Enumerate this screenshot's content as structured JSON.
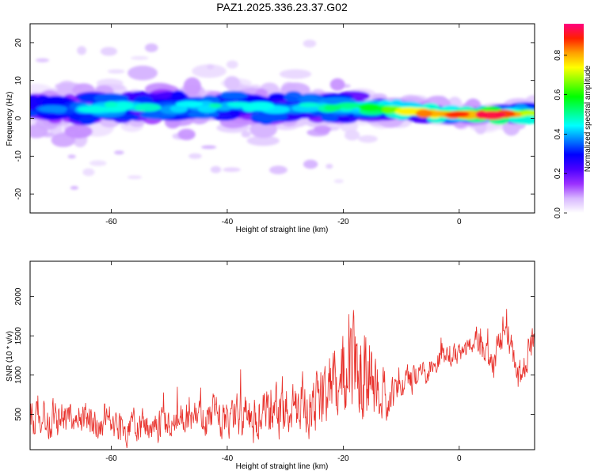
{
  "title": "PAZ1.2025.336.23.37.G02",
  "chart_data": [
    {
      "type": "heatmap",
      "title": "PAZ1.2025.336.23.37.G02",
      "xlabel": "Height of straight line (km)",
      "ylabel": "Frequency (Hz)",
      "xlim": [
        -74,
        13
      ],
      "ylim": [
        -25,
        25
      ],
      "xticks": [
        -60,
        -40,
        -20,
        0
      ],
      "yticks": [
        -20,
        -10,
        0,
        10,
        20
      ],
      "colorbar": {
        "label": "Normalized spectral amplitude",
        "range": [
          0,
          0.96
        ],
        "ticks": [
          0.0,
          0.2,
          0.4,
          0.6,
          0.8
        ],
        "colormap": [
          "#ffffff",
          "#d8b8ff",
          "#9b30ff",
          "#4b00ff",
          "#0000ff",
          "#0080ff",
          "#00ffff",
          "#00ff80",
          "#00ff00",
          "#80ff00",
          "#ffff00",
          "#ffa000",
          "#ff2000",
          "#ff0080"
        ]
      },
      "ridge": {
        "description_points_x": [
          -73,
          -66,
          -60,
          -50,
          -40,
          -30,
          -20,
          -12,
          -6,
          0,
          6,
          12
        ],
        "center_freq": [
          2.0,
          2.5,
          3.0,
          3.0,
          3.2,
          2.8,
          3.0,
          2.4,
          1.5,
          0.9,
          0.8,
          1.5
        ],
        "peak_amplitude": [
          0.35,
          0.45,
          0.55,
          0.45,
          0.5,
          0.45,
          0.55,
          0.65,
          0.85,
          0.9,
          0.95,
          0.75
        ]
      }
    },
    {
      "type": "line",
      "xlabel": "Height of straight line (km)",
      "ylabel": "SNR (10 * v/v)",
      "xlim": [
        -74,
        13
      ],
      "ylim": [
        50,
        2450
      ],
      "xticks": [
        -60,
        -40,
        -20,
        0
      ],
      "yticks": [
        500,
        1000,
        1500,
        2000
      ],
      "series": [
        {
          "name": "SNR",
          "color": "#e8302a",
          "x": [
            -74,
            -70,
            -65,
            -60,
            -55,
            -50,
            -45,
            -40,
            -35,
            -30,
            -25,
            -22,
            -20,
            -18,
            -16,
            -14,
            -12,
            -10,
            -8,
            -6,
            -4,
            -2,
            0,
            2,
            3,
            4,
            5,
            6,
            7,
            8,
            9,
            10,
            11,
            12,
            13
          ],
          "mean": [
            420,
            430,
            450,
            400,
            350,
            380,
            420,
            480,
            500,
            560,
            650,
            800,
            1000,
            1200,
            1100,
            800,
            700,
            850,
            950,
            1050,
            1150,
            1250,
            1300,
            1350,
            1550,
            1400,
            1200,
            1100,
            1400,
            1700,
            1300,
            900,
            1000,
            1300,
            1500
          ],
          "spread": [
            300,
            330,
            330,
            300,
            280,
            300,
            330,
            380,
            420,
            480,
            550,
            700,
            900,
            1000,
            900,
            550,
            300,
            280,
            250,
            220,
            200,
            200,
            200,
            220,
            250,
            250,
            250,
            250,
            300,
            300,
            300,
            300,
            300,
            300,
            300
          ]
        }
      ]
    }
  ]
}
